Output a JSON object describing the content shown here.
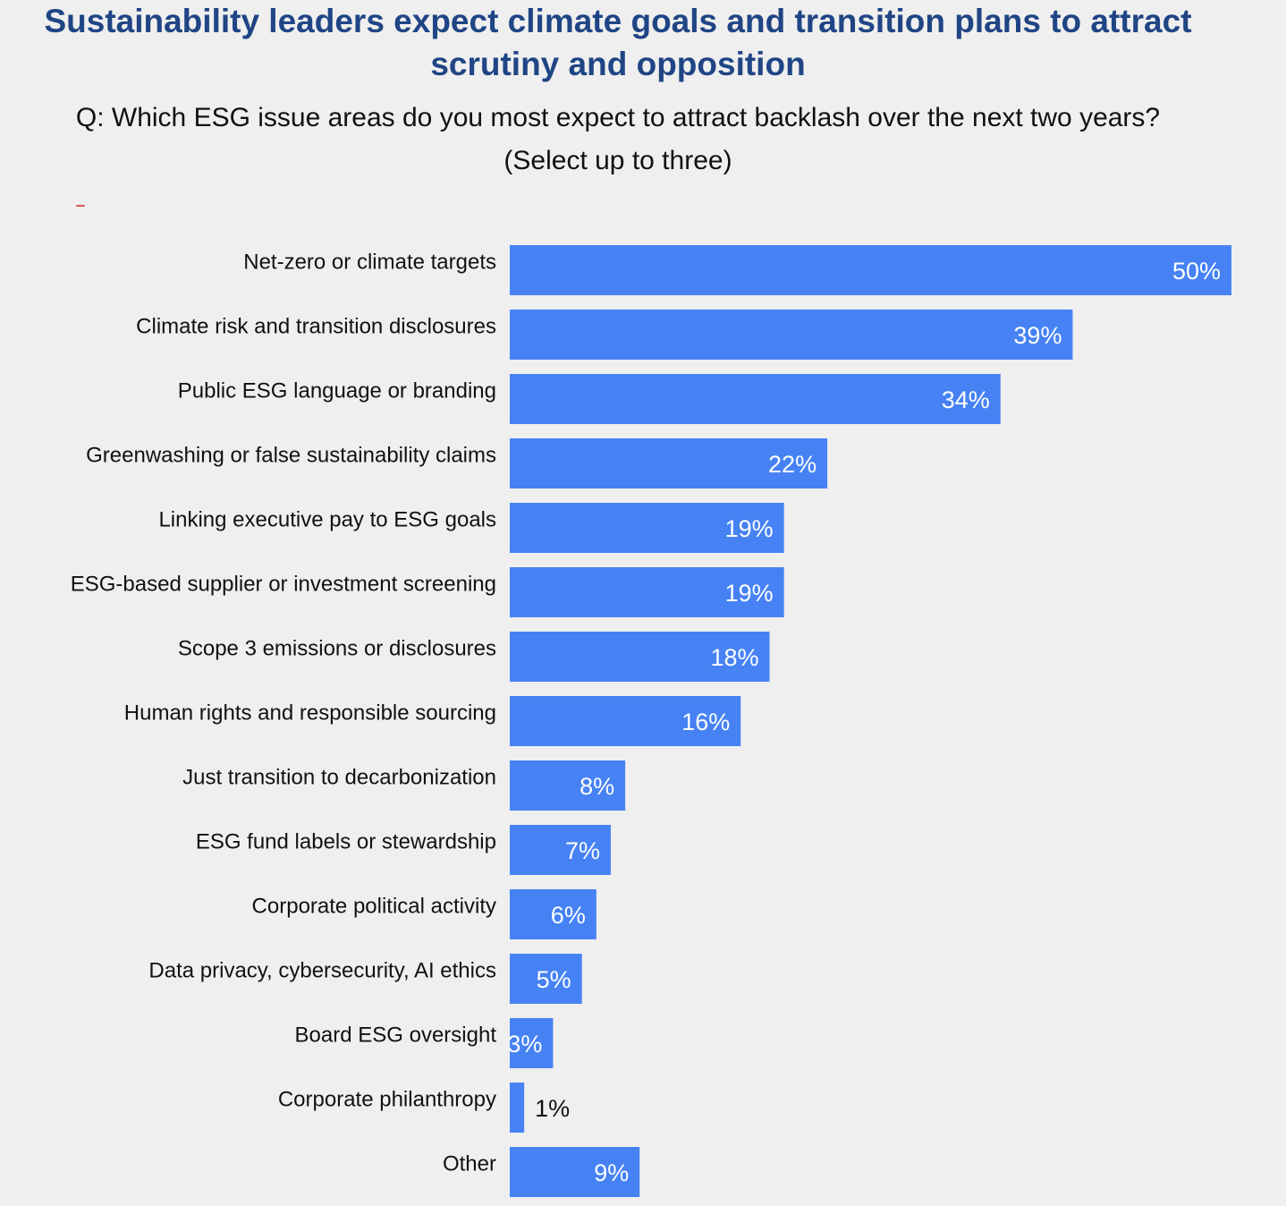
{
  "chart_data": {
    "type": "bar",
    "orientation": "horizontal",
    "title": "Sustainability leaders expect climate goals and transition plans to attract scrutiny and opposition",
    "subtitle": "Q: Which ESG issue areas do you most expect to attract backlash over the next two years? (Select up to three)",
    "categories": [
      "Net-zero or climate targets",
      "Climate risk and transition disclosures",
      "Public ESG language or branding",
      "Greenwashing or false sustainability claims",
      "Linking executive pay to ESG goals",
      "ESG-based supplier or investment screening",
      "Scope 3 emissions or disclosures",
      "Human rights and responsible sourcing",
      "Just transition to decarbonization",
      "ESG fund labels or stewardship",
      "Corporate political activity",
      "Data privacy, cybersecurity, AI ethics",
      "Board ESG oversight",
      "Corporate philanthropy",
      "Other"
    ],
    "values": [
      50,
      39,
      34,
      22,
      19,
      19,
      18,
      16,
      8,
      7,
      6,
      5,
      3,
      1,
      9
    ],
    "value_labels": [
      "50%",
      "39%",
      "34%",
      "22%",
      "19%",
      "19%",
      "18%",
      "16%",
      "8%",
      "7%",
      "6%",
      "5%",
      "3%",
      "1%",
      "9%"
    ],
    "unit": "%",
    "xlim": [
      0,
      50
    ],
    "bar_color": "#4682f4",
    "label_color_inside": "#ffffff",
    "label_color_outside": "#111111",
    "title_color": "#1f4585",
    "background": "#efefef",
    "grid": false,
    "legend": "none"
  }
}
